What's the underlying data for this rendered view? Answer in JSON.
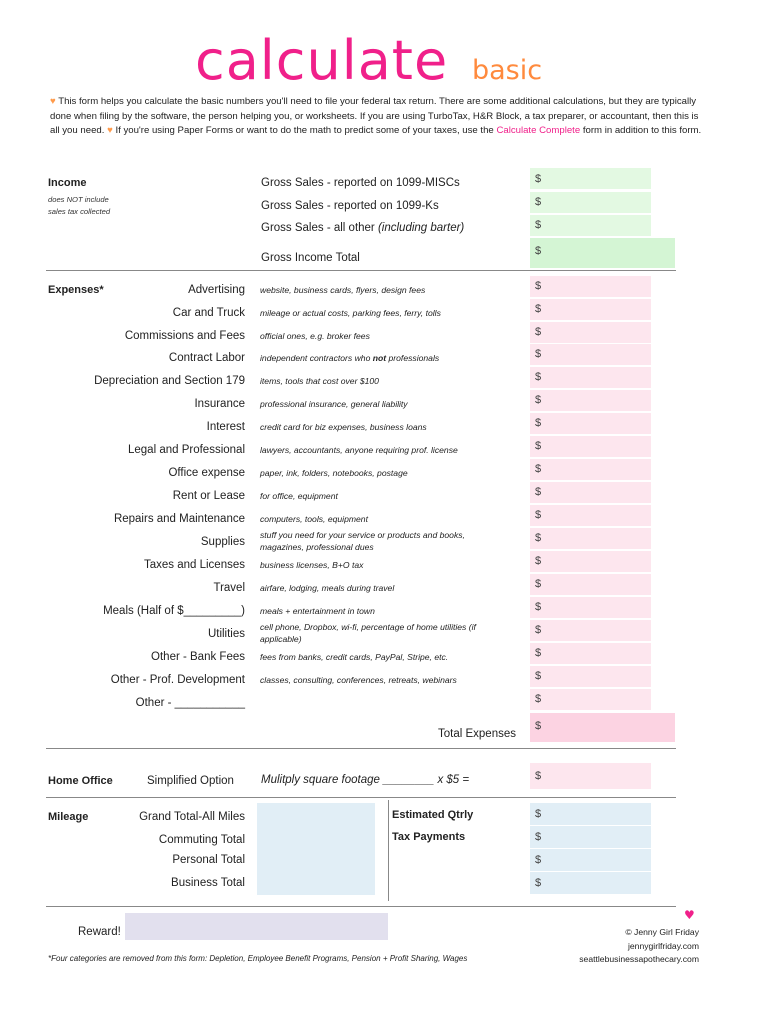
{
  "title": {
    "main": "calculate",
    "sub": "basic"
  },
  "intro": {
    "part1": "This form helps you calculate the basic numbers you'll need to file your federal tax return. There are some additional calculations, but they are typically done when filing by the software, the person helping you, or worksheets. If you are using TurboTax, H&R Block, a tax preparer, or accountant, then this is all you need.",
    "part2": "If you're using Paper Forms or want to do the math to predict some of your taxes, use the",
    "link": "Calculate Complete",
    "part3": "form in addition to this form."
  },
  "currency": "$",
  "income": {
    "heading": "Income",
    "note1": "does NOT include",
    "note2": "sales tax collected",
    "rows": [
      {
        "label": "Gross Sales - reported on 1099-MISCs"
      },
      {
        "label": "Gross Sales - reported on 1099-Ks"
      },
      {
        "label": "Gross Sales - all other",
        "note": "(including barter)"
      }
    ],
    "total": "Gross Income Total"
  },
  "expenses": {
    "heading": "Expenses*",
    "rows": [
      {
        "label": "Advertising",
        "desc": "website, business cards, flyers, design fees"
      },
      {
        "label": "Car and Truck",
        "desc": "mileage or actual costs, parking fees, ferry, tolls"
      },
      {
        "label": "Commissions and Fees",
        "desc": "official ones, e.g. broker fees"
      },
      {
        "label": "Contract Labor",
        "desc": "independent contractors who",
        "desc_bold": "not",
        "desc_after": "professionals"
      },
      {
        "label": "Depreciation and Section 179",
        "desc": "items, tools that cost over $100"
      },
      {
        "label": "Insurance",
        "desc": "professional insurance, general liability"
      },
      {
        "label": "Interest",
        "desc": "credit card for biz expenses, business loans"
      },
      {
        "label": "Legal and Professional",
        "desc": "lawyers, accountants, anyone requiring prof. license"
      },
      {
        "label": "Office expense",
        "desc": "paper, ink, folders, notebooks, postage"
      },
      {
        "label": "Rent or Lease",
        "desc": "for office, equipment"
      },
      {
        "label": "Repairs and Maintenance",
        "desc": "computers, tools, equipment"
      },
      {
        "label": "Supplies",
        "desc": "stuff you need for your service or products and books,",
        "desc2": "magazines, professional dues"
      },
      {
        "label": "Taxes and Licenses",
        "desc": "business licenses, B+O tax"
      },
      {
        "label": "Travel",
        "desc": "airfare, lodging, meals during travel"
      },
      {
        "label": "Meals (Half of $_________)",
        "desc": "meals + entertainment in town"
      },
      {
        "label": "Utilities",
        "desc": "cell phone, Dropbox, wi-fi, percentage of home utilities (if",
        "desc2": "applicable)"
      },
      {
        "label": "Other - Bank Fees",
        "desc": "fees from banks, credit cards, PayPal, Stripe, etc."
      },
      {
        "label": "Other - Prof. Development",
        "desc": "classes, consulting, conferences, retreats, webinars"
      },
      {
        "label": "Other - ___________",
        "desc": ""
      }
    ],
    "total": "Total Expenses"
  },
  "home_office": {
    "heading": "Home Office",
    "option": "Simplified Option",
    "formula": "Mulitply square footage ________ x $5 ="
  },
  "mileage": {
    "heading": "Mileage",
    "rows": [
      "Grand Total-All Miles",
      "Commuting Total",
      "Personal Total",
      "Business Total"
    ]
  },
  "estimated": {
    "line1": "Estimated Qtrly",
    "line2": "Tax Payments"
  },
  "reward": "Reward!",
  "footnote": "*Four categories are removed from this form: Depletion, Employee Benefit Programs, Pension + Profit Sharing, Wages",
  "credit": {
    "line1": "© Jenny Girl Friday",
    "line2": "jennygirlfriday.com",
    "line3": "seattlebusinessapothecary.com"
  },
  "colors": {
    "pink": "#f0208a",
    "orange": "#ff8a3d",
    "green": "#e3f9e2",
    "pink_field": "#fde6ee",
    "blue_field": "#e1eef6",
    "lavender": "#e2e0ee"
  }
}
